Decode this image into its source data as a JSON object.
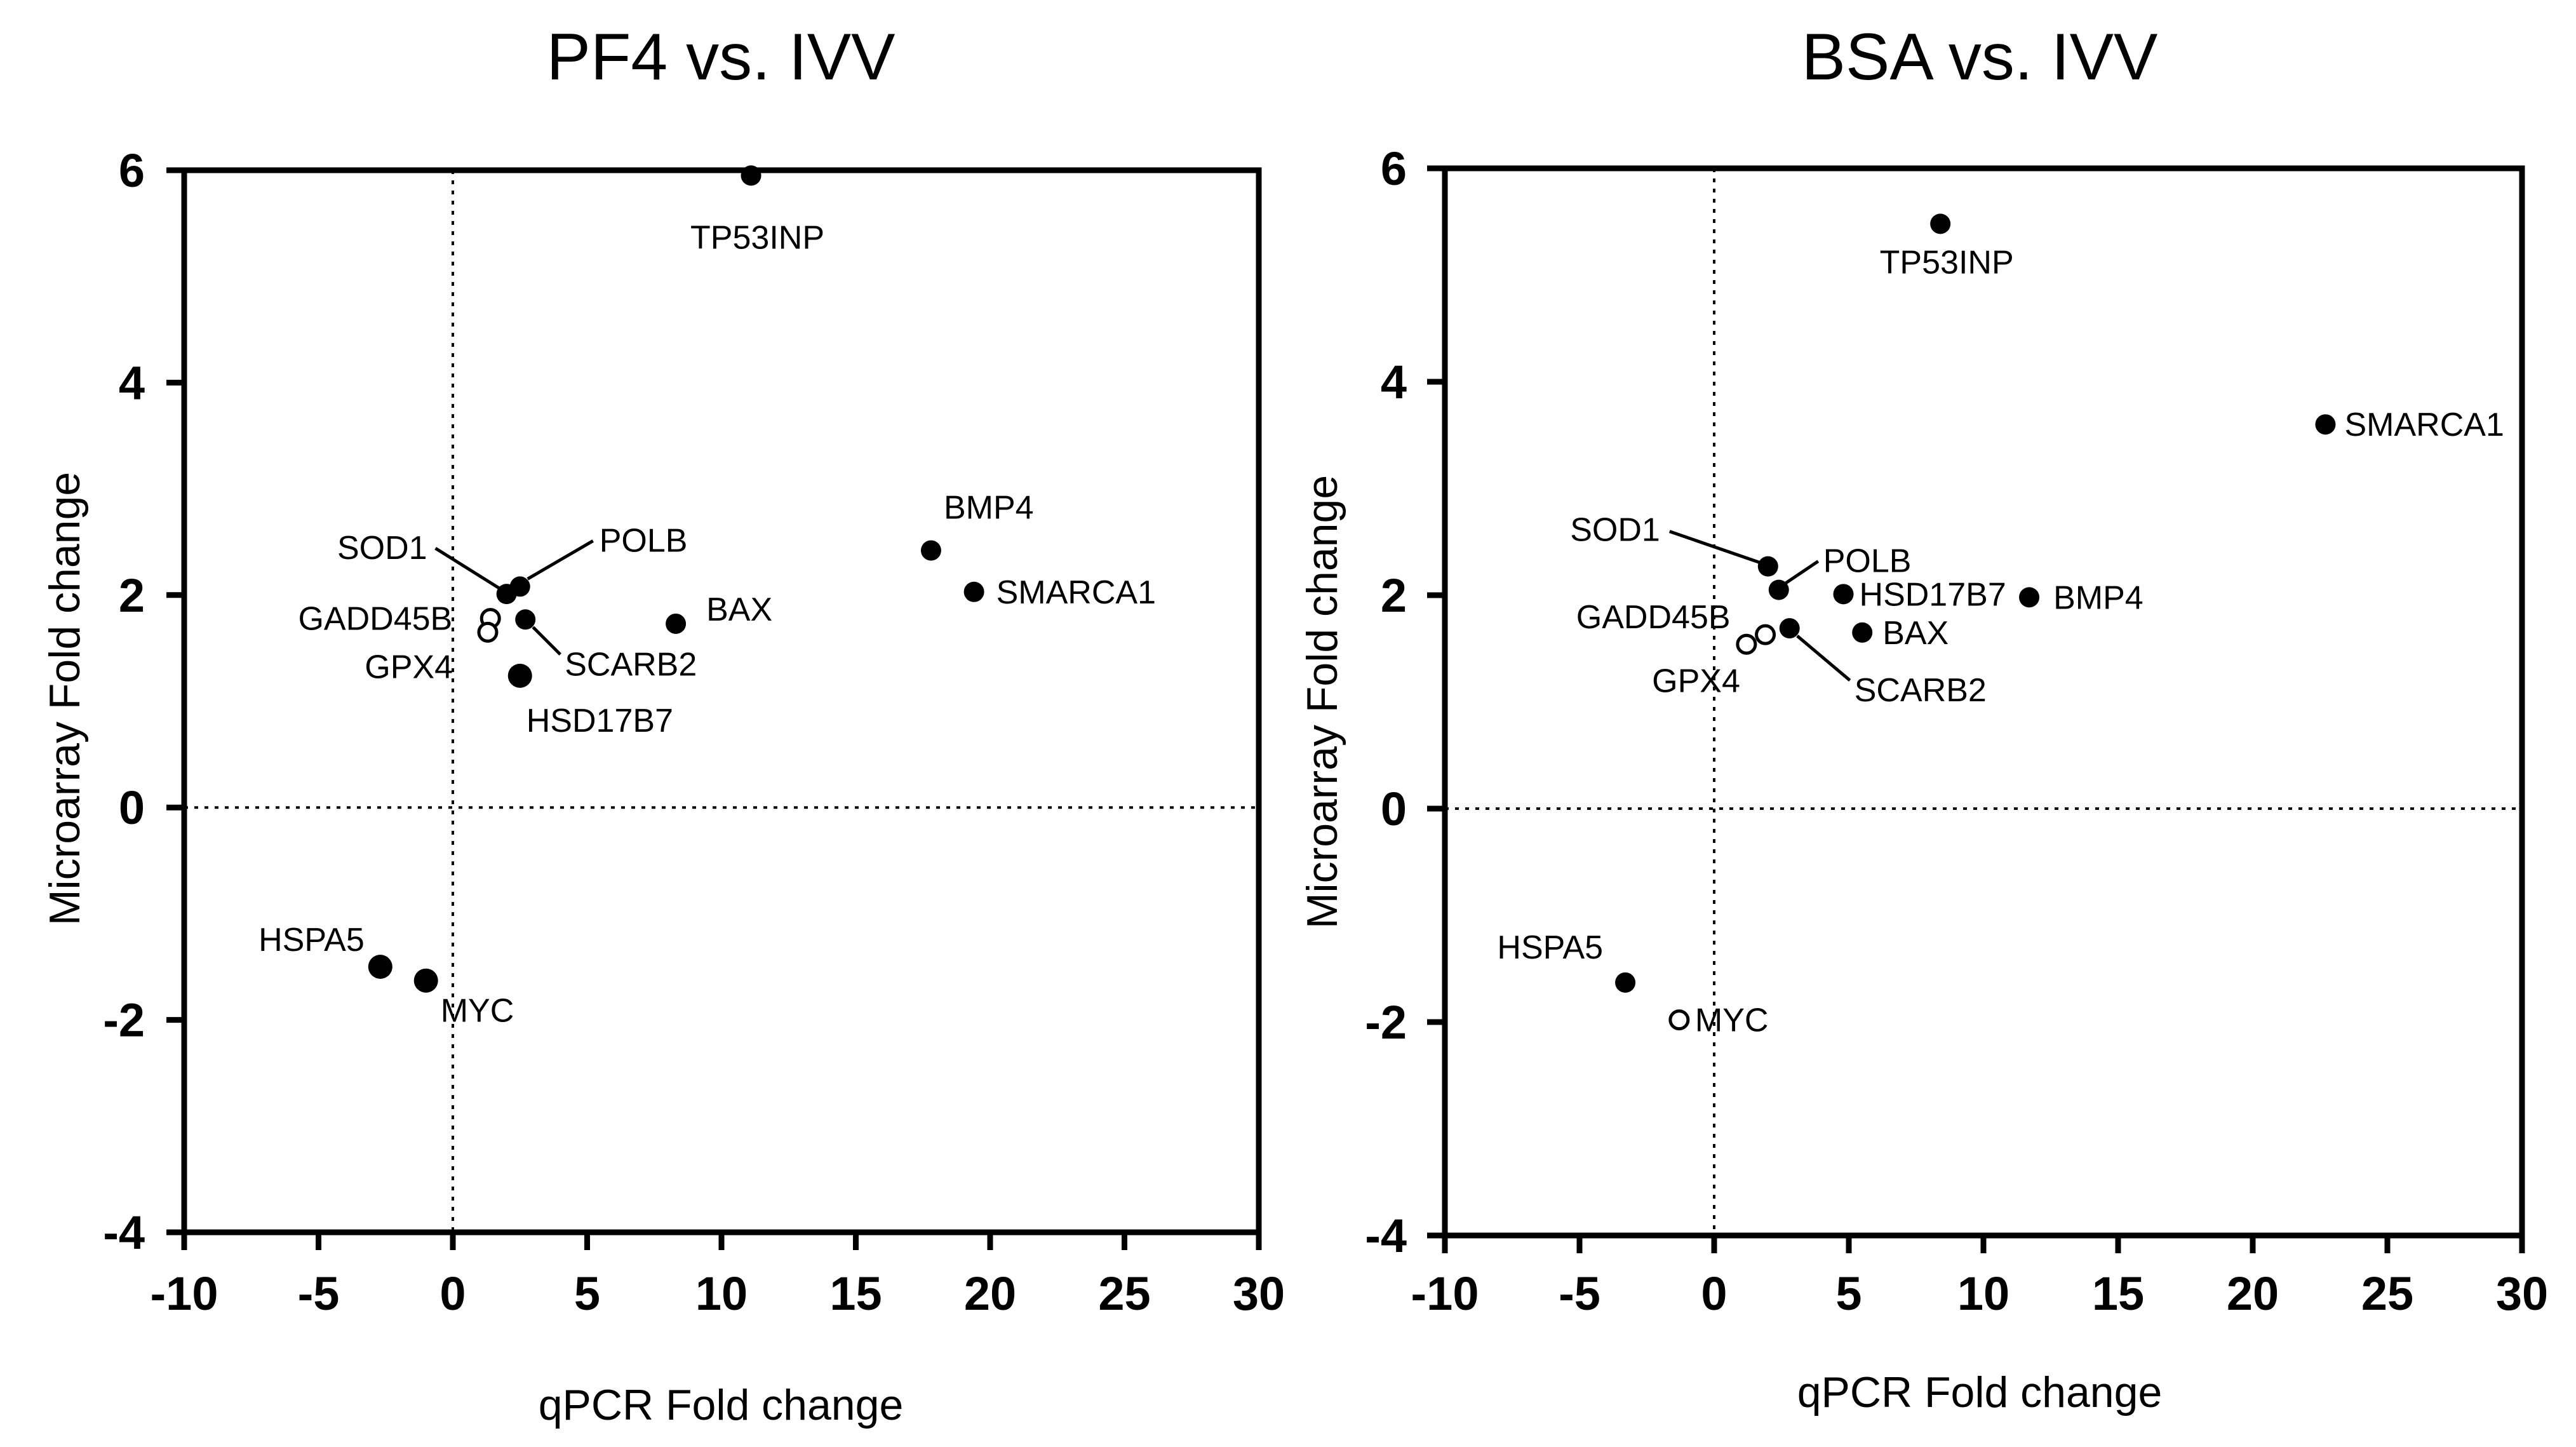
{
  "chart_data": [
    {
      "type": "scatter",
      "title": "PF4 vs. IVV",
      "xlabel": "qPCR Fold change",
      "ylabel": "Microarray Fold change",
      "xlim": [
        -10,
        30
      ],
      "ylim": [
        -4,
        6
      ],
      "xticks": [
        -10,
        -5,
        0,
        5,
        10,
        15,
        20,
        25,
        30
      ],
      "yticks": [
        -4,
        -2,
        0,
        2,
        4,
        6
      ],
      "grid": false,
      "zero_lines": true,
      "points": [
        {
          "label": "TP53INP",
          "x": 11.1,
          "y": 5.95,
          "filled": true
        },
        {
          "label": "BMP4",
          "x": 17.8,
          "y": 2.42,
          "filled": true
        },
        {
          "label": "SMARCA1",
          "x": 19.4,
          "y": 2.03,
          "filled": true
        },
        {
          "label": "BAX",
          "x": 8.3,
          "y": 1.73,
          "filled": true
        },
        {
          "label": "SOD1",
          "x": 2.0,
          "y": 2.01,
          "filled": true
        },
        {
          "label": "POLB",
          "x": 2.5,
          "y": 2.08,
          "filled": true
        },
        {
          "label": "SCARB2",
          "x": 2.7,
          "y": 1.77,
          "filled": true
        },
        {
          "label": "GADD45B",
          "x": 1.4,
          "y": 1.78,
          "filled": false
        },
        {
          "label": "GPX4",
          "x": 1.3,
          "y": 1.65,
          "filled": false
        },
        {
          "label": "HSD17B7",
          "x": 2.5,
          "y": 1.24,
          "filled": true
        },
        {
          "label": "HSPA5",
          "x": -2.7,
          "y": -1.5,
          "filled": true
        },
        {
          "label": "MYC",
          "x": -1.0,
          "y": -1.63,
          "filled": true
        }
      ]
    },
    {
      "type": "scatter",
      "title": "BSA vs. IVV",
      "xlabel": "qPCR Fold change",
      "ylabel": "Microarray Fold change",
      "xlim": [
        -10,
        30
      ],
      "ylim": [
        -4,
        6
      ],
      "xticks": [
        -10,
        -5,
        0,
        5,
        10,
        15,
        20,
        25,
        30
      ],
      "yticks": [
        -4,
        -2,
        0,
        2,
        4,
        6
      ],
      "grid": false,
      "zero_lines": true,
      "points": [
        {
          "label": "TP53INP",
          "x": 8.4,
          "y": 5.48,
          "filled": true
        },
        {
          "label": "SMARCA1",
          "x": 22.7,
          "y": 3.6,
          "filled": true
        },
        {
          "label": "SOD1",
          "x": 2.0,
          "y": 2.27,
          "filled": true
        },
        {
          "label": "POLB",
          "x": 2.4,
          "y": 2.05,
          "filled": true
        },
        {
          "label": "HSD17B7",
          "x": 4.8,
          "y": 2.01,
          "filled": true
        },
        {
          "label": "BMP4",
          "x": 11.7,
          "y": 1.98,
          "filled": true
        },
        {
          "label": "BAX",
          "x": 5.5,
          "y": 1.65,
          "filled": true
        },
        {
          "label": "SCARB2",
          "x": 2.8,
          "y": 1.69,
          "filled": true
        },
        {
          "label": "GADD45B",
          "x": 1.9,
          "y": 1.63,
          "filled": false
        },
        {
          "label": "GPX4",
          "x": 1.2,
          "y": 1.54,
          "filled": false
        },
        {
          "label": "HSPA5",
          "x": -3.3,
          "y": -1.63,
          "filled": true
        },
        {
          "label": "MYC",
          "x": -1.3,
          "y": -1.98,
          "filled": false
        }
      ]
    }
  ]
}
